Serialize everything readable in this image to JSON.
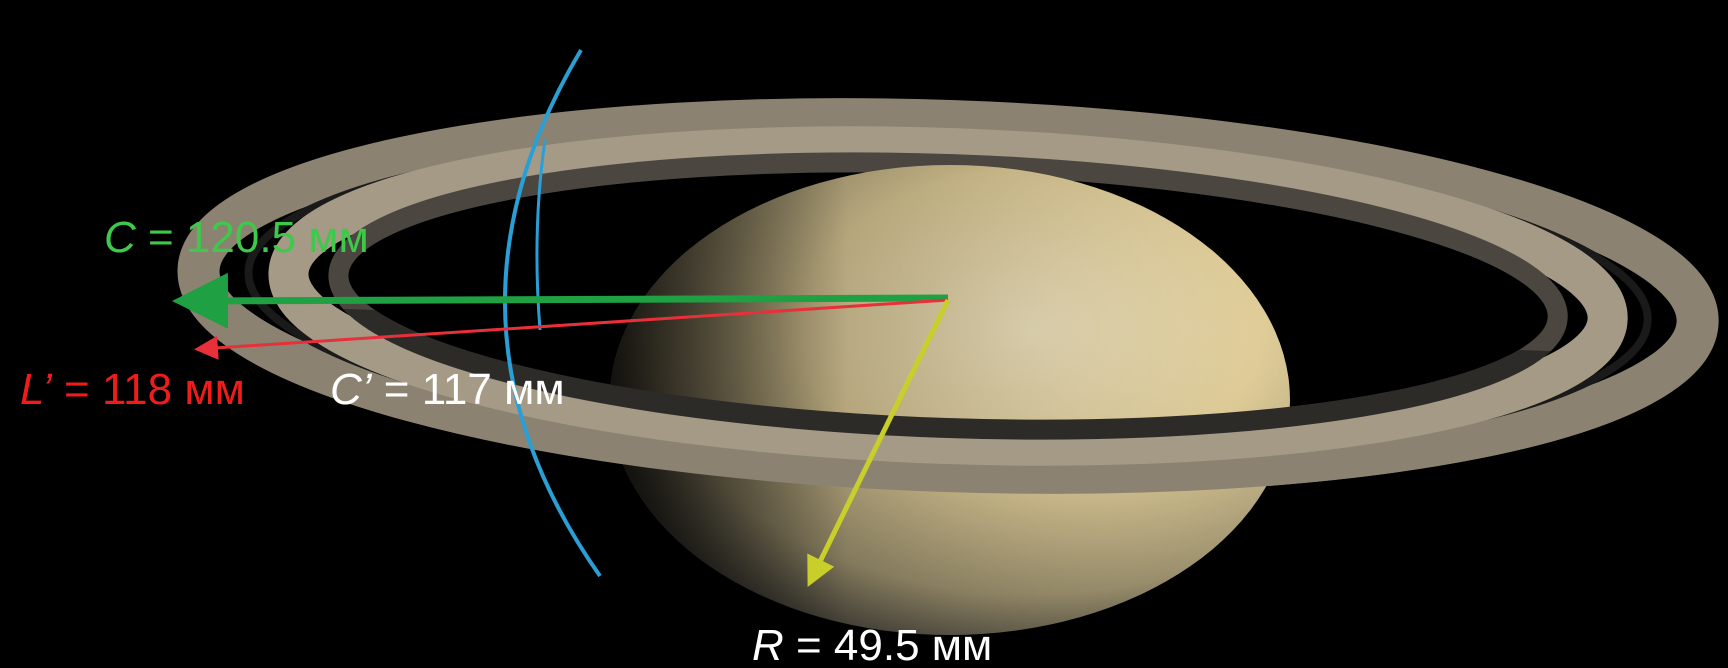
{
  "labels": [
    {
      "symbol": "C",
      "text": " = 120.5 мм"
    },
    {
      "symbol": "L’",
      "text": " = 118 мм"
    },
    {
      "symbol": "C’",
      "text": " = 117 мм"
    },
    {
      "symbol": "R",
      "text": " = 49.5 мм"
    }
  ]
}
